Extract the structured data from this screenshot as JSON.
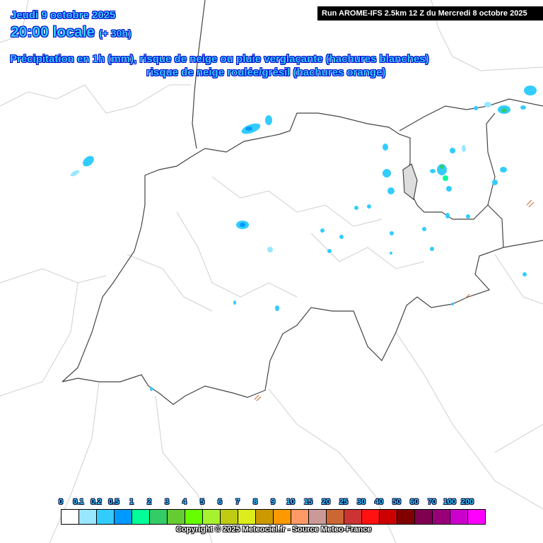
{
  "header": {
    "date": "Jeudi 9 octobre 2025",
    "time": "20:00 locale",
    "lead": "(+ 30h)",
    "line1": "Précipitation en 1h (mm), risque de neige ou pluie verglaçante (hachures blanches)",
    "line2": "risque de neige roulée/grésil (hachures orange)",
    "run": "Run AROME-IFS 2.5km 12 Z du Mercredi 8 octobre 2025"
  },
  "legend": {
    "labels": [
      "0",
      "0.1",
      "0.2",
      "0.5",
      "1",
      "2",
      "3",
      "4",
      "5",
      "6",
      "7",
      "8",
      "9",
      "10",
      "15",
      "20",
      "25",
      "30",
      "40",
      "50",
      "60",
      "70",
      "100",
      "200"
    ],
    "colors": [
      "#ffffff",
      "#99e6ff",
      "#33ccff",
      "#0099ff",
      "#00ff99",
      "#33cc66",
      "#66cc33",
      "#66ff00",
      "#a6f231",
      "#bfcc11",
      "#dced1b",
      "#cc9900",
      "#ff9900",
      "#ff9966",
      "#cc9999",
      "#cc6633",
      "#cc3333",
      "#ff1111",
      "#cc0000",
      "#800000",
      "#800050",
      "#990077",
      "#cc00cc",
      "#ff00ff"
    ]
  },
  "footer": {
    "copyright": "Copyright © 2025 Meteociel.fr - Source Meteo-France"
  },
  "colors": {
    "border_main": "#333333",
    "border_minor": "#cccccc",
    "title_fill": "#33ccff",
    "title_outline": "#0000cc"
  }
}
